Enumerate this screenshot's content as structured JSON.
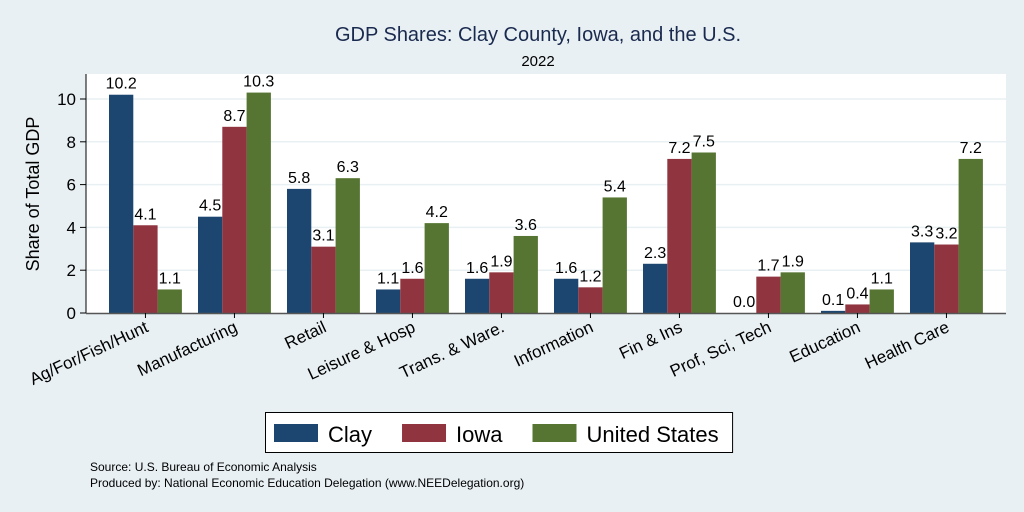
{
  "chart_data": {
    "type": "bar",
    "title": "GDP Shares: Clay County, Iowa, and the U.S.",
    "subtitle": "2022",
    "xlabel": "",
    "ylabel": "Share of Total GDP",
    "ylim": [
      0,
      11.2
    ],
    "yticks": [
      0,
      2,
      4,
      6,
      8,
      10
    ],
    "grid": true,
    "legend_position": "bottom",
    "categories": [
      "Ag/For/Fish/Hunt",
      "Manufacturing",
      "Retail",
      "Leisure & Hosp",
      "Trans. & Ware.",
      "Information",
      "Fin & Ins",
      "Prof, Sci, Tech",
      "Education",
      "Health Care"
    ],
    "series": [
      {
        "name": "Clay",
        "color": "#1c4670",
        "values": [
          10.2,
          4.5,
          5.8,
          1.1,
          1.6,
          1.6,
          2.3,
          0.0,
          0.1,
          3.3
        ],
        "labels": [
          "10.2",
          "4.5",
          "5.8",
          "1.1",
          "1.6",
          "1.6",
          "2.3",
          "0.0",
          "0.1",
          "3.3"
        ]
      },
      {
        "name": "Iowa",
        "color": "#903540",
        "values": [
          4.1,
          8.7,
          3.1,
          1.6,
          1.9,
          1.2,
          7.2,
          1.7,
          0.4,
          3.2
        ],
        "labels": [
          "4.1",
          "8.7",
          "3.1",
          "1.6",
          "1.9",
          "1.2",
          "7.2",
          "1.7",
          "0.4",
          "3.2"
        ]
      },
      {
        "name": "United States",
        "color": "#567532",
        "values": [
          1.1,
          10.3,
          6.3,
          4.2,
          3.6,
          5.4,
          7.5,
          1.9,
          1.1,
          7.2
        ],
        "labels": [
          "1.1",
          "10.3",
          "6.3",
          "4.2",
          "3.6",
          "5.4",
          "7.5",
          "1.9",
          "1.1",
          "7.2"
        ]
      }
    ],
    "notes": [
      "Source: U.S. Bureau of Economic Analysis",
      "Produced by: National Economic Education Delegation (www.NEEDelegation.org)"
    ]
  },
  "colors": {
    "background": "#e8f0f3",
    "plot_background": "#ffffff",
    "gridline": "#e8f0f3",
    "title": "#1a2a4f"
  }
}
